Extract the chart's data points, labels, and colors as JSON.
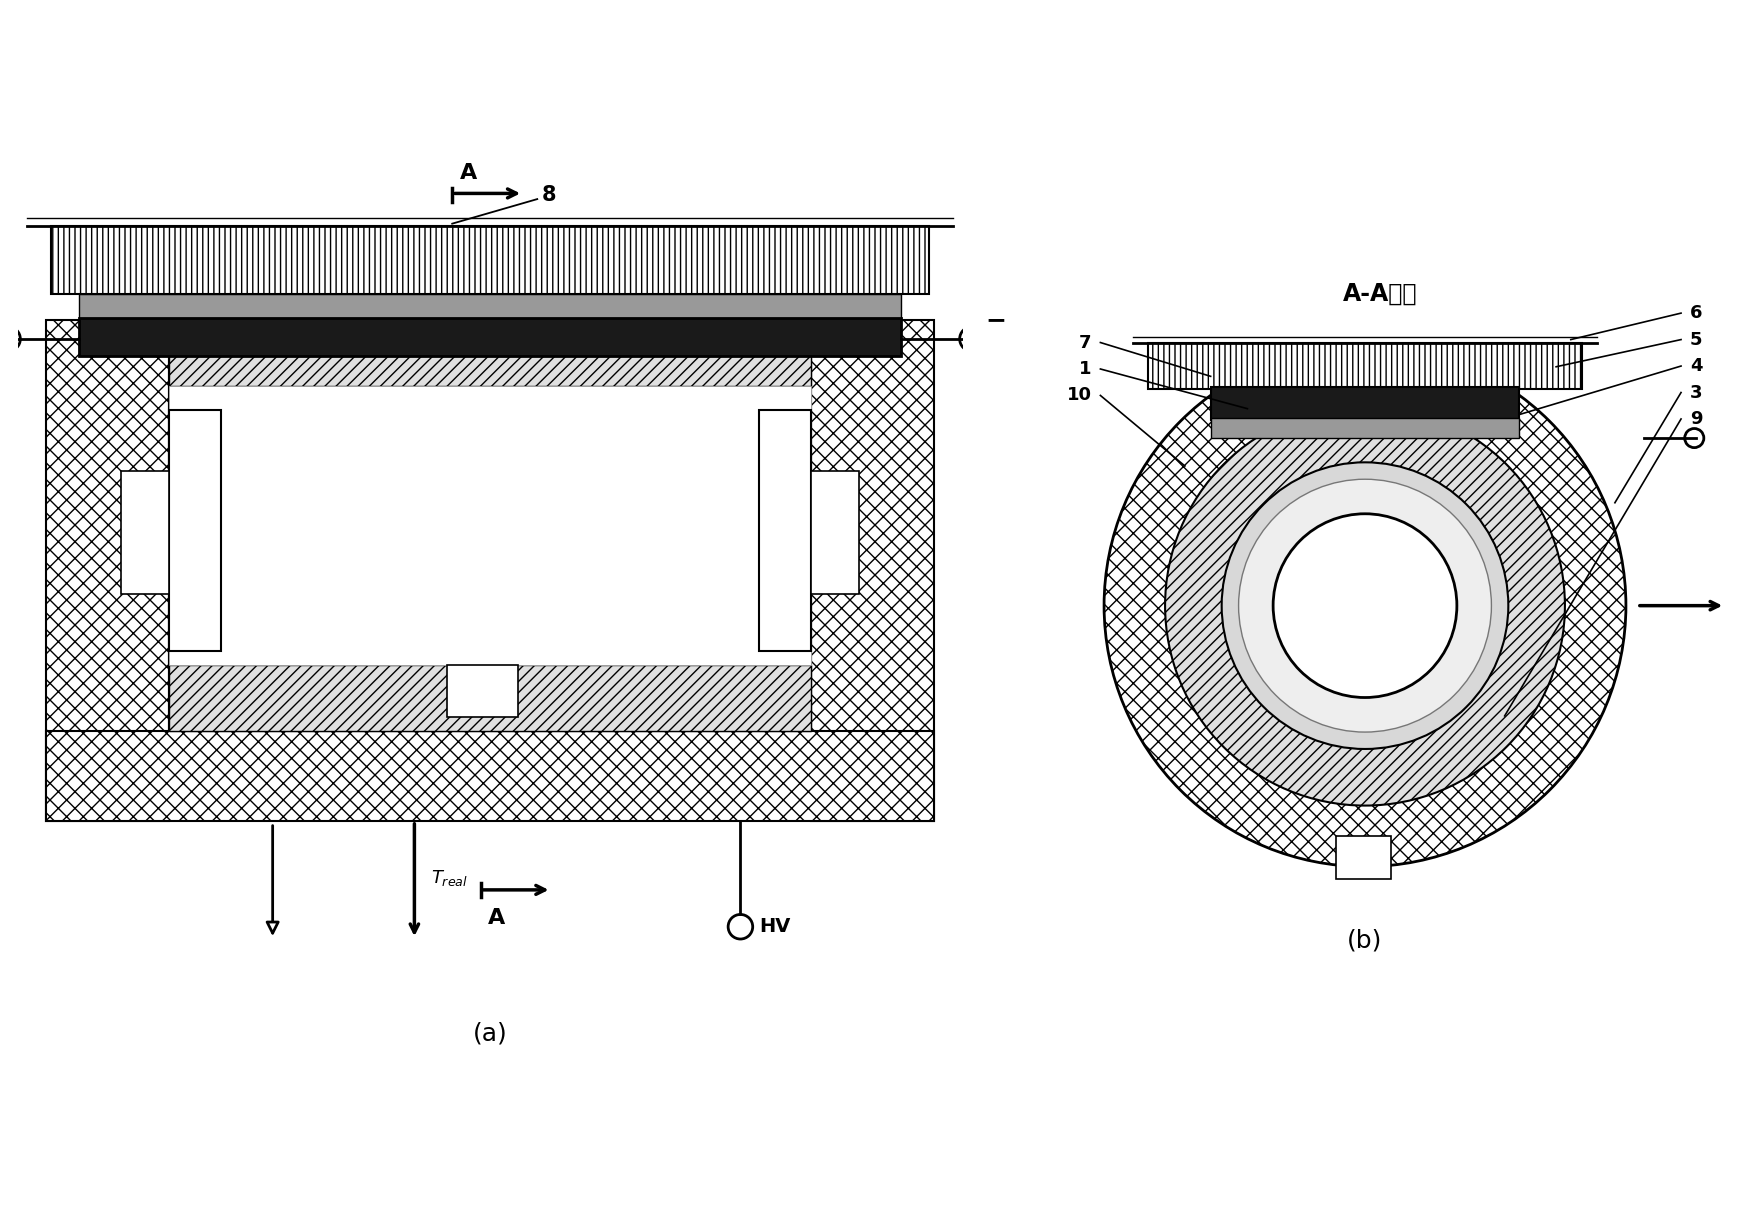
{
  "fig_width": 17.5,
  "fig_height": 12.26,
  "bg_color": "#ffffff",
  "label_a_section": "A-A剑面",
  "label_a_caption": "(a)",
  "label_b_caption": "(b)",
  "tec_black": "#1a1a1a",
  "thermal_gray": "#aaaaaa",
  "speckle_gray": "#999999",
  "light_gray": "#d8d8d8",
  "diag_face": "#e0e0e0"
}
